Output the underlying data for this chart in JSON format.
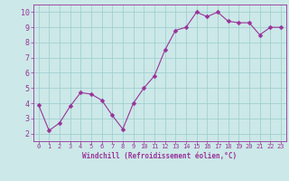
{
  "x": [
    0,
    1,
    2,
    3,
    4,
    5,
    6,
    7,
    8,
    9,
    10,
    11,
    12,
    13,
    14,
    15,
    16,
    17,
    18,
    19,
    20,
    21,
    22,
    23
  ],
  "y": [
    3.9,
    2.2,
    2.7,
    3.8,
    4.7,
    4.6,
    4.2,
    3.2,
    2.3,
    4.0,
    5.0,
    5.8,
    7.5,
    8.8,
    9.0,
    10.0,
    9.7,
    10.0,
    9.4,
    9.3,
    9.3,
    8.5,
    9.0,
    9.0
  ],
  "line_color": "#993399",
  "marker_color": "#993399",
  "background_color": "#cce8e8",
  "grid_color": "#99cccc",
  "xlabel": "Windchill (Refroidissement éolien,°C)",
  "xlim": [
    -0.5,
    23.5
  ],
  "ylim": [
    1.5,
    10.5
  ],
  "yticks": [
    2,
    3,
    4,
    5,
    6,
    7,
    8,
    9,
    10
  ],
  "xticks": [
    0,
    1,
    2,
    3,
    4,
    5,
    6,
    7,
    8,
    9,
    10,
    11,
    12,
    13,
    14,
    15,
    16,
    17,
    18,
    19,
    20,
    21,
    22,
    23
  ],
  "grid_linewidth": 0.5,
  "line_linewidth": 0.8,
  "marker_size": 2.5
}
